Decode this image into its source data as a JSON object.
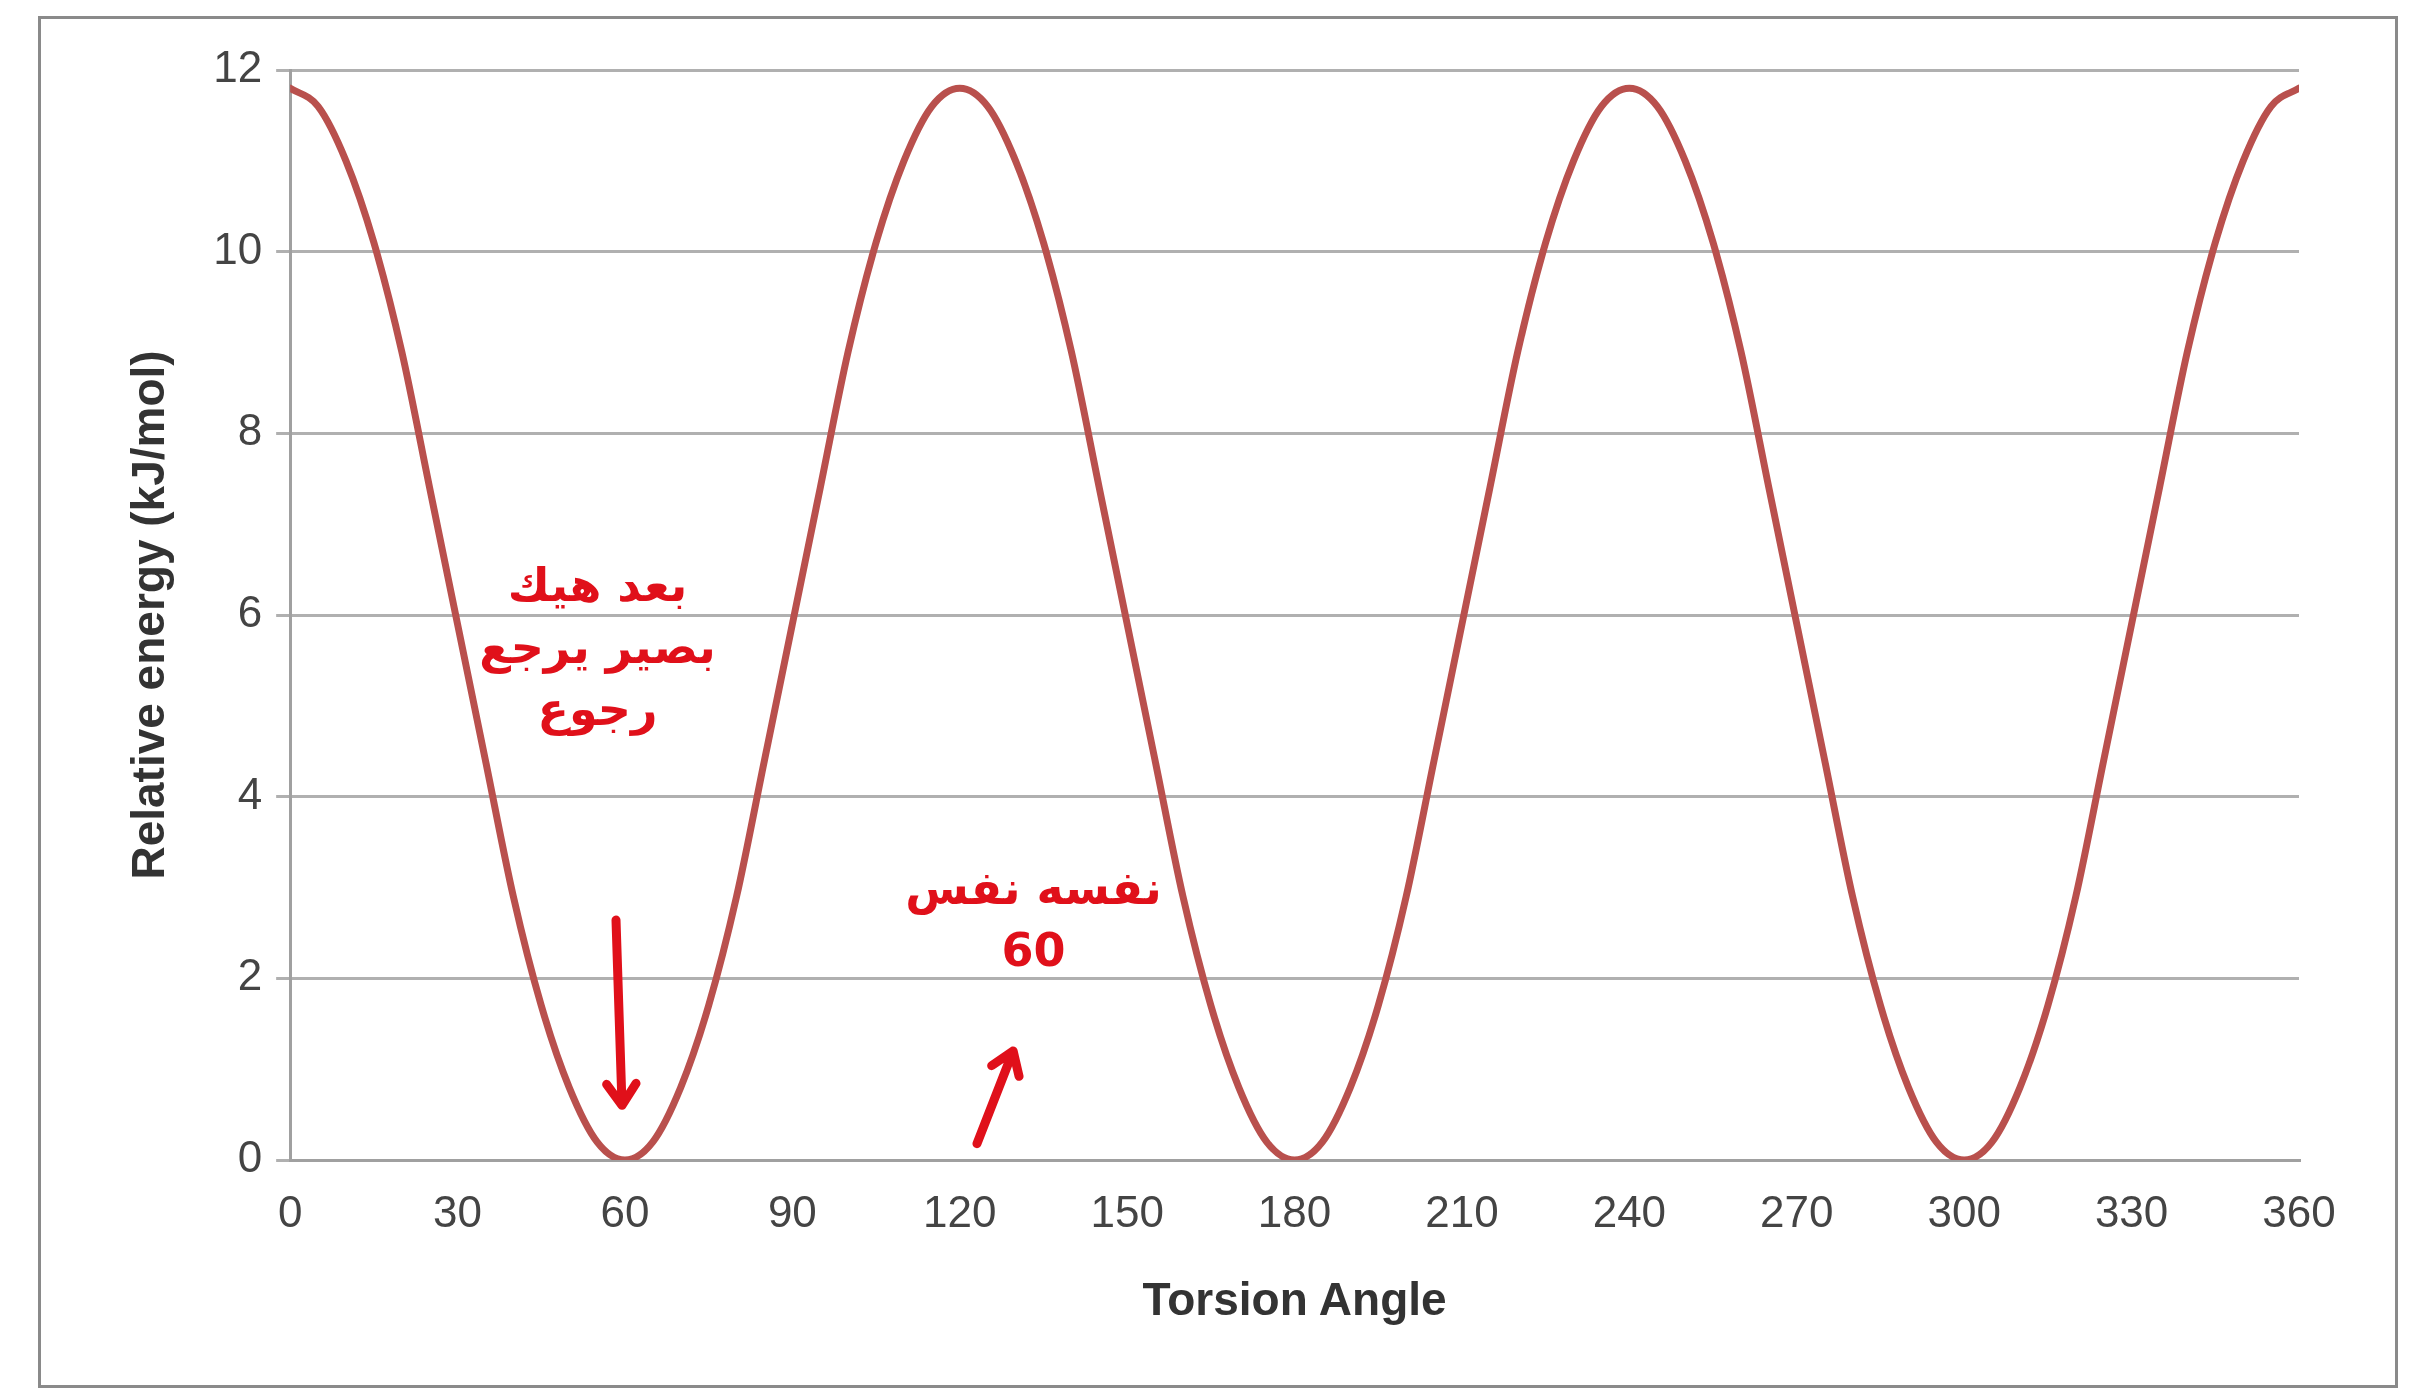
{
  "chart_data": {
    "type": "line",
    "xlabel": "Torsion Angle",
    "ylabel": "Relative energy (kJ/mol)",
    "xlim": [
      0,
      360
    ],
    "xticks": [
      0,
      30,
      60,
      90,
      120,
      150,
      180,
      210,
      240,
      270,
      300,
      330,
      360
    ],
    "ylim": [
      0,
      12
    ],
    "yticks": [
      0,
      2,
      4,
      6,
      8,
      10,
      12
    ],
    "grid": "y",
    "marker": "none",
    "line_style": "solid",
    "legend": false,
    "x": [
      0,
      5,
      10,
      15,
      20,
      25,
      30,
      35,
      40,
      45,
      50,
      55,
      60,
      65,
      70,
      75,
      80,
      85,
      90,
      95,
      100,
      105,
      110,
      115,
      120,
      125,
      130,
      135,
      140,
      145,
      150,
      155,
      160,
      165,
      170,
      175,
      180,
      185,
      190,
      195,
      200,
      205,
      210,
      215,
      220,
      225,
      230,
      235,
      240,
      245,
      250,
      255,
      260,
      265,
      270,
      275,
      280,
      285,
      290,
      295,
      300,
      305,
      310,
      315,
      320,
      325,
      330,
      335,
      340,
      345,
      350,
      355,
      360
    ],
    "series": [
      {
        "color": "#b9504d",
        "values": [
          11.8,
          11.6,
          11.0,
          10.1,
          8.9,
          7.4,
          5.9,
          4.4,
          2.9,
          1.7,
          0.8,
          0.2,
          0,
          0.2,
          0.8,
          1.7,
          2.9,
          4.4,
          5.9,
          7.4,
          8.9,
          10.1,
          11.0,
          11.6,
          11.8,
          11.6,
          11.0,
          10.1,
          8.9,
          7.4,
          5.9,
          4.4,
          2.9,
          1.7,
          0.8,
          0.2,
          0,
          0.2,
          0.8,
          1.7,
          2.9,
          4.4,
          5.9,
          7.4,
          8.9,
          10.1,
          11.0,
          11.6,
          11.8,
          11.6,
          11.0,
          10.1,
          8.9,
          7.4,
          5.9,
          4.4,
          2.9,
          1.7,
          0.8,
          0.2,
          0,
          0.2,
          0.8,
          1.7,
          2.9,
          4.4,
          5.9,
          7.4,
          8.9,
          10.1,
          11.0,
          11.6,
          11.8
        ]
      }
    ],
    "annotations": [
      "بعد هيك بصير يرجع رجوع",
      "نفسه نفس 60"
    ]
  }
}
